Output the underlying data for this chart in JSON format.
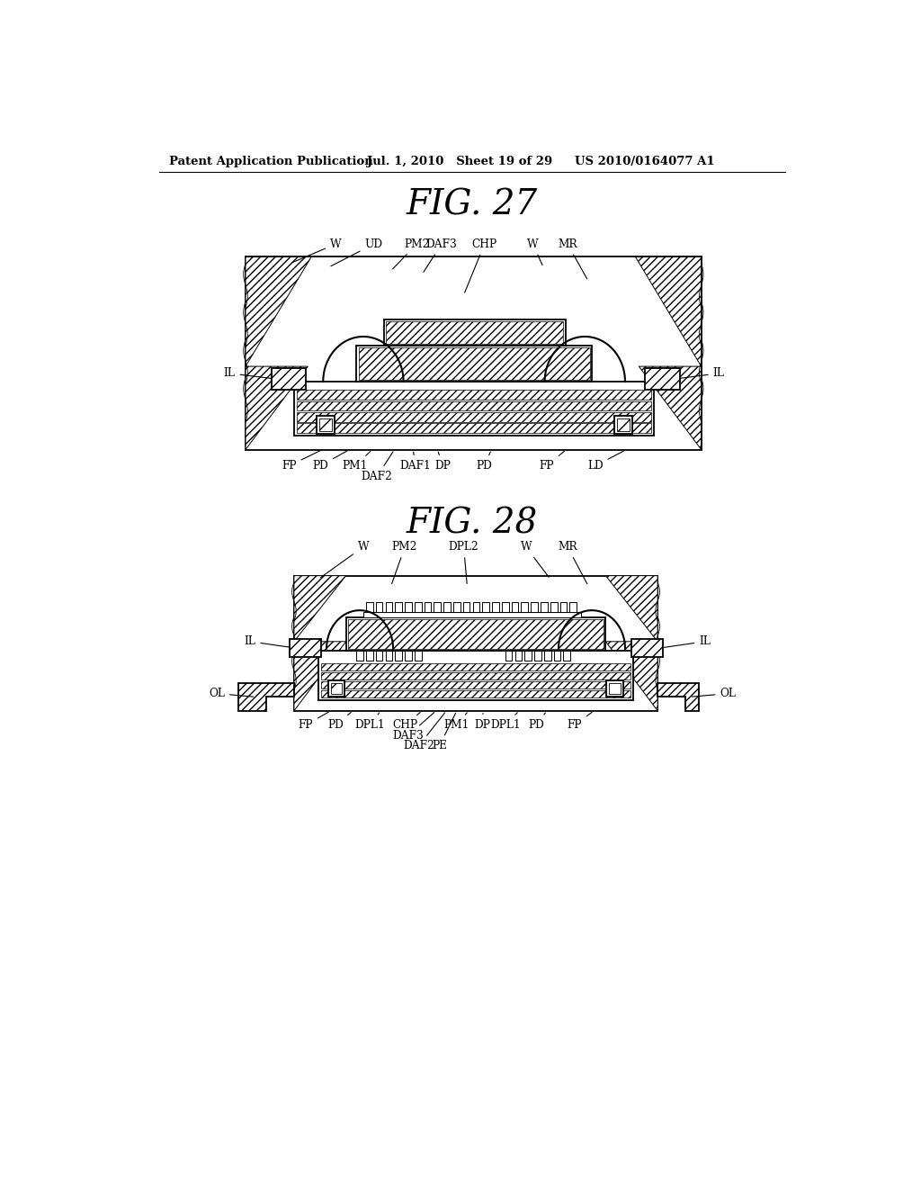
{
  "header_left": "Patent Application Publication",
  "header_mid": "Jul. 1, 2010   Sheet 19 of 29",
  "header_right": "US 2010/0164077 A1",
  "fig27_title": "FIG. 27",
  "fig28_title": "FIG. 28",
  "bg_color": "#ffffff",
  "line_color": "#000000"
}
